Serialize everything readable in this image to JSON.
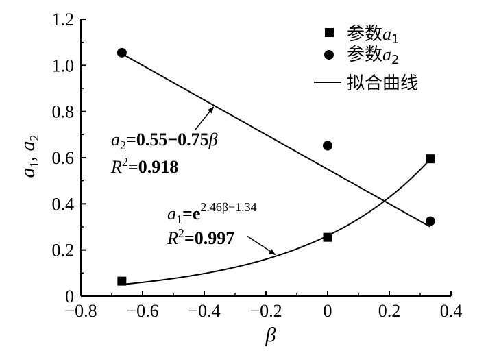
{
  "chart_data": {
    "type": "scatter",
    "xlabel": "β",
    "ylabel_main": "a",
    "ylabel_sub1": "1",
    "ylabel_sep": ", ",
    "ylabel_var2": "a",
    "ylabel_sub2": "2",
    "xlim": [
      -0.8,
      0.4
    ],
    "ylim": [
      0,
      1.2
    ],
    "x_ticks": [
      -0.8,
      -0.6,
      -0.4,
      -0.2,
      0,
      0.2,
      0.4
    ],
    "x_tick_labels": [
      "−0.8",
      "−0.6",
      "−0.4",
      "−0.2",
      "0",
      "0.2",
      "0.4"
    ],
    "y_ticks": [
      0,
      0.2,
      0.4,
      0.6,
      0.8,
      1.0,
      1.2
    ],
    "y_tick_labels": [
      "0",
      "0.2",
      "0.4",
      "0.6",
      "0.8",
      "1.0",
      "1.2"
    ],
    "grid": false,
    "legend_position": "top-right",
    "series": [
      {
        "name": "参数a1",
        "legend_text": "参数",
        "legend_var": "a",
        "legend_sub": "1",
        "marker": "square",
        "x": [
          -0.667,
          0,
          0.333
        ],
        "y": [
          0.065,
          0.255,
          0.595
        ]
      },
      {
        "name": "参数a2",
        "legend_text": "参数",
        "legend_var": "a",
        "legend_sub": "2",
        "marker": "circle",
        "x": [
          -0.667,
          0,
          0.333
        ],
        "y": [
          1.055,
          0.652,
          0.325
        ]
      }
    ],
    "fits": [
      {
        "name": "a1 fit",
        "form": "exp",
        "coef": 2.46,
        "offset": -1.34,
        "x_range": [
          -0.667,
          0.333
        ]
      },
      {
        "name": "a2 fit",
        "form": "linear",
        "intercept": 0.55,
        "slope": -0.75,
        "x_range": [
          -0.667,
          0.333
        ]
      }
    ],
    "fit_legend": "拟合曲线",
    "annotations": {
      "a2_eq": {
        "var": "a",
        "sub": "2",
        "rest": "=0.55−0.75",
        "beta": "β",
        "r2_var": "R",
        "r2_sup": "2",
        "r2_val": "=0.918",
        "arrow_from": [
          -0.43,
          0.72
        ],
        "arrow_to": [
          -0.37,
          0.82
        ]
      },
      "a1_eq": {
        "var": "a",
        "sub": "1",
        "eq": "=e",
        "sup": "2.46β−1.34",
        "r2_var": "R",
        "r2_sup": "2",
        "r2_val": "=0.997",
        "arrow_from": [
          -0.26,
          0.26
        ],
        "arrow_to": [
          -0.17,
          0.18
        ]
      }
    }
  }
}
